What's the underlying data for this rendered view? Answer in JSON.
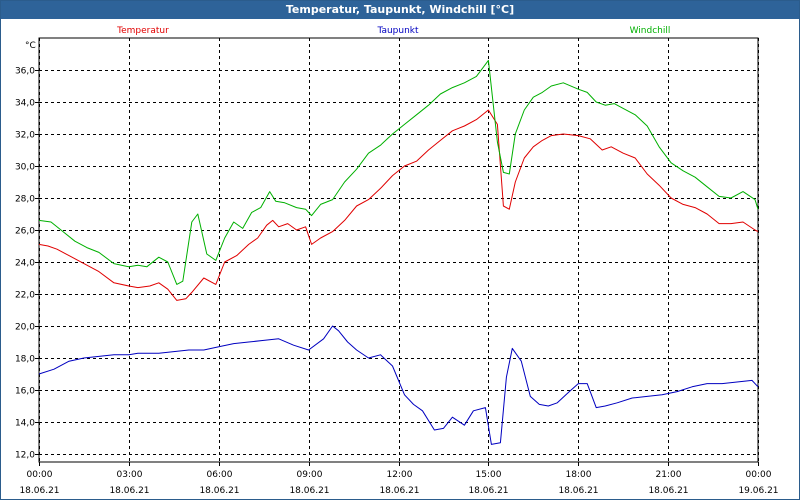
{
  "chart_data": {
    "type": "line",
    "title": "Temperatur, Taupunkt, Windchill [°C]",
    "ylabel": "°C",
    "ylim": [
      11.5,
      38
    ],
    "xlim": [
      0,
      24
    ],
    "grid": true,
    "yticks": [
      {
        "value": 12,
        "label": "12,0"
      },
      {
        "value": 14,
        "label": "14,0"
      },
      {
        "value": 16,
        "label": "16,0"
      },
      {
        "value": 18,
        "label": "18,0"
      },
      {
        "value": 20,
        "label": "20,0"
      },
      {
        "value": 22,
        "label": "22,0"
      },
      {
        "value": 24,
        "label": "24,0"
      },
      {
        "value": 26,
        "label": "26,0"
      },
      {
        "value": 28,
        "label": "28,0"
      },
      {
        "value": 30,
        "label": "30,0"
      },
      {
        "value": 32,
        "label": "32,0"
      },
      {
        "value": 34,
        "label": "34,0"
      },
      {
        "value": 36,
        "label": "36,0"
      }
    ],
    "xticks": [
      {
        "value": 0,
        "time": "00:00",
        "date": "18.06.21"
      },
      {
        "value": 3,
        "time": "03:00",
        "date": "18.06.21"
      },
      {
        "value": 6,
        "time": "06:00",
        "date": "18.06.21"
      },
      {
        "value": 9,
        "time": "09:00",
        "date": "18.06.21"
      },
      {
        "value": 12,
        "time": "12:00",
        "date": "18.06.21"
      },
      {
        "value": 15,
        "time": "15:00",
        "date": "18.06.21"
      },
      {
        "value": 18,
        "time": "18:00",
        "date": "18.06.21"
      },
      {
        "value": 21,
        "time": "21:00",
        "date": "18.06.21"
      },
      {
        "value": 24,
        "time": "00:00",
        "date": "19.06.21"
      }
    ],
    "series": [
      {
        "name": "Temperatur",
        "color": "#e00000",
        "x": [
          0,
          0.3,
          0.6,
          1,
          1.5,
          2,
          2.5,
          3,
          3.3,
          3.7,
          4,
          4.3,
          4.6,
          4.9,
          5.1,
          5.5,
          5.9,
          6.2,
          6.6,
          7,
          7.3,
          7.6,
          7.8,
          8,
          8.3,
          8.6,
          8.9,
          9.1,
          9.4,
          9.8,
          10.2,
          10.6,
          11,
          11.4,
          11.8,
          12.2,
          12.6,
          13,
          13.4,
          13.8,
          14.2,
          14.6,
          15,
          15.3,
          15.5,
          15.7,
          15.9,
          16.2,
          16.5,
          16.8,
          17.1,
          17.5,
          18,
          18.4,
          18.8,
          19.1,
          19.5,
          19.9,
          20.3,
          20.7,
          21.1,
          21.5,
          21.9,
          22.3,
          22.7,
          23.1,
          23.5,
          23.9,
          24
        ],
        "y": [
          25.1,
          25.0,
          24.8,
          24.4,
          23.9,
          23.4,
          22.7,
          22.5,
          22.4,
          22.5,
          22.7,
          22.3,
          21.6,
          21.7,
          22.1,
          23.0,
          22.6,
          24.0,
          24.4,
          25.1,
          25.5,
          26.3,
          26.6,
          26.2,
          26.4,
          26.0,
          26.2,
          25.1,
          25.5,
          25.9,
          26.6,
          27.5,
          27.9,
          28.6,
          29.4,
          30.0,
          30.3,
          31.0,
          31.6,
          32.2,
          32.5,
          32.9,
          33.5,
          32.6,
          27.5,
          27.3,
          29.0,
          30.5,
          31.2,
          31.6,
          31.9,
          32.0,
          31.9,
          31.7,
          31.0,
          31.2,
          30.8,
          30.5,
          29.5,
          28.8,
          28.0,
          27.6,
          27.4,
          27.0,
          26.4,
          26.4,
          26.5,
          26.0,
          25.9
        ]
      },
      {
        "name": "Taupunkt",
        "color": "#0000c0",
        "x": [
          0,
          0.5,
          1,
          1.5,
          2,
          2.5,
          3,
          3.3,
          3.7,
          4,
          4.5,
          5,
          5.5,
          6,
          6.5,
          7,
          7.5,
          8,
          8.5,
          9,
          9.5,
          9.8,
          10,
          10.3,
          10.6,
          11,
          11.4,
          11.8,
          12.2,
          12.5,
          12.8,
          13.2,
          13.5,
          13.8,
          14.2,
          14.5,
          14.9,
          15.1,
          15.4,
          15.6,
          15.8,
          16.1,
          16.4,
          16.7,
          17,
          17.3,
          17.7,
          18,
          18.3,
          18.6,
          18.9,
          19.3,
          19.8,
          20.3,
          20.8,
          21.3,
          21.8,
          22.3,
          22.8,
          23.3,
          23.8,
          24
        ],
        "y": [
          17.0,
          17.3,
          17.8,
          18.0,
          18.1,
          18.2,
          18.2,
          18.3,
          18.3,
          18.3,
          18.4,
          18.5,
          18.5,
          18.7,
          18.9,
          19.0,
          19.1,
          19.2,
          18.8,
          18.5,
          19.2,
          20.0,
          19.7,
          19.0,
          18.5,
          18.0,
          18.2,
          17.5,
          15.7,
          15.1,
          14.7,
          13.5,
          13.6,
          14.3,
          13.8,
          14.7,
          14.9,
          12.6,
          12.7,
          16.8,
          18.6,
          17.8,
          15.6,
          15.1,
          15.0,
          15.2,
          15.9,
          16.4,
          16.4,
          14.9,
          15.0,
          15.2,
          15.5,
          15.6,
          15.7,
          15.9,
          16.2,
          16.4,
          16.4,
          16.5,
          16.6,
          16.2
        ]
      },
      {
        "name": "Windchill",
        "color": "#00b000",
        "x": [
          0,
          0.4,
          0.8,
          1.2,
          1.6,
          2,
          2.5,
          3,
          3.3,
          3.6,
          4,
          4.3,
          4.6,
          4.8,
          5.1,
          5.3,
          5.6,
          5.9,
          6.2,
          6.5,
          6.8,
          7.1,
          7.4,
          7.7,
          7.9,
          8.2,
          8.6,
          8.9,
          9.1,
          9.4,
          9.8,
          10.2,
          10.6,
          11,
          11.4,
          11.8,
          12.2,
          12.6,
          13,
          13.4,
          13.8,
          14.2,
          14.6,
          15,
          15.3,
          15.5,
          15.7,
          15.9,
          16.2,
          16.5,
          16.8,
          17.1,
          17.5,
          18,
          18.3,
          18.6,
          18.9,
          19.2,
          19.5,
          19.9,
          20.3,
          20.7,
          21.1,
          21.5,
          21.9,
          22.3,
          22.7,
          23.1,
          23.5,
          23.9,
          24
        ],
        "y": [
          26.6,
          26.5,
          25.9,
          25.3,
          24.9,
          24.6,
          23.9,
          23.7,
          23.8,
          23.7,
          24.3,
          24.0,
          22.6,
          22.8,
          26.5,
          27.0,
          24.5,
          24.1,
          25.5,
          26.5,
          26.1,
          27.1,
          27.4,
          28.4,
          27.8,
          27.7,
          27.4,
          27.3,
          26.9,
          27.6,
          27.9,
          29.0,
          29.8,
          30.8,
          31.3,
          32.0,
          32.6,
          33.2,
          33.8,
          34.5,
          34.9,
          35.2,
          35.6,
          36.6,
          31.5,
          29.6,
          29.5,
          32.0,
          33.5,
          34.3,
          34.6,
          35.0,
          35.2,
          34.8,
          34.6,
          34.0,
          33.8,
          33.9,
          33.6,
          33.2,
          32.5,
          31.2,
          30.2,
          29.7,
          29.3,
          28.7,
          28.1,
          28.0,
          28.4,
          27.9,
          27.3
        ]
      }
    ]
  }
}
